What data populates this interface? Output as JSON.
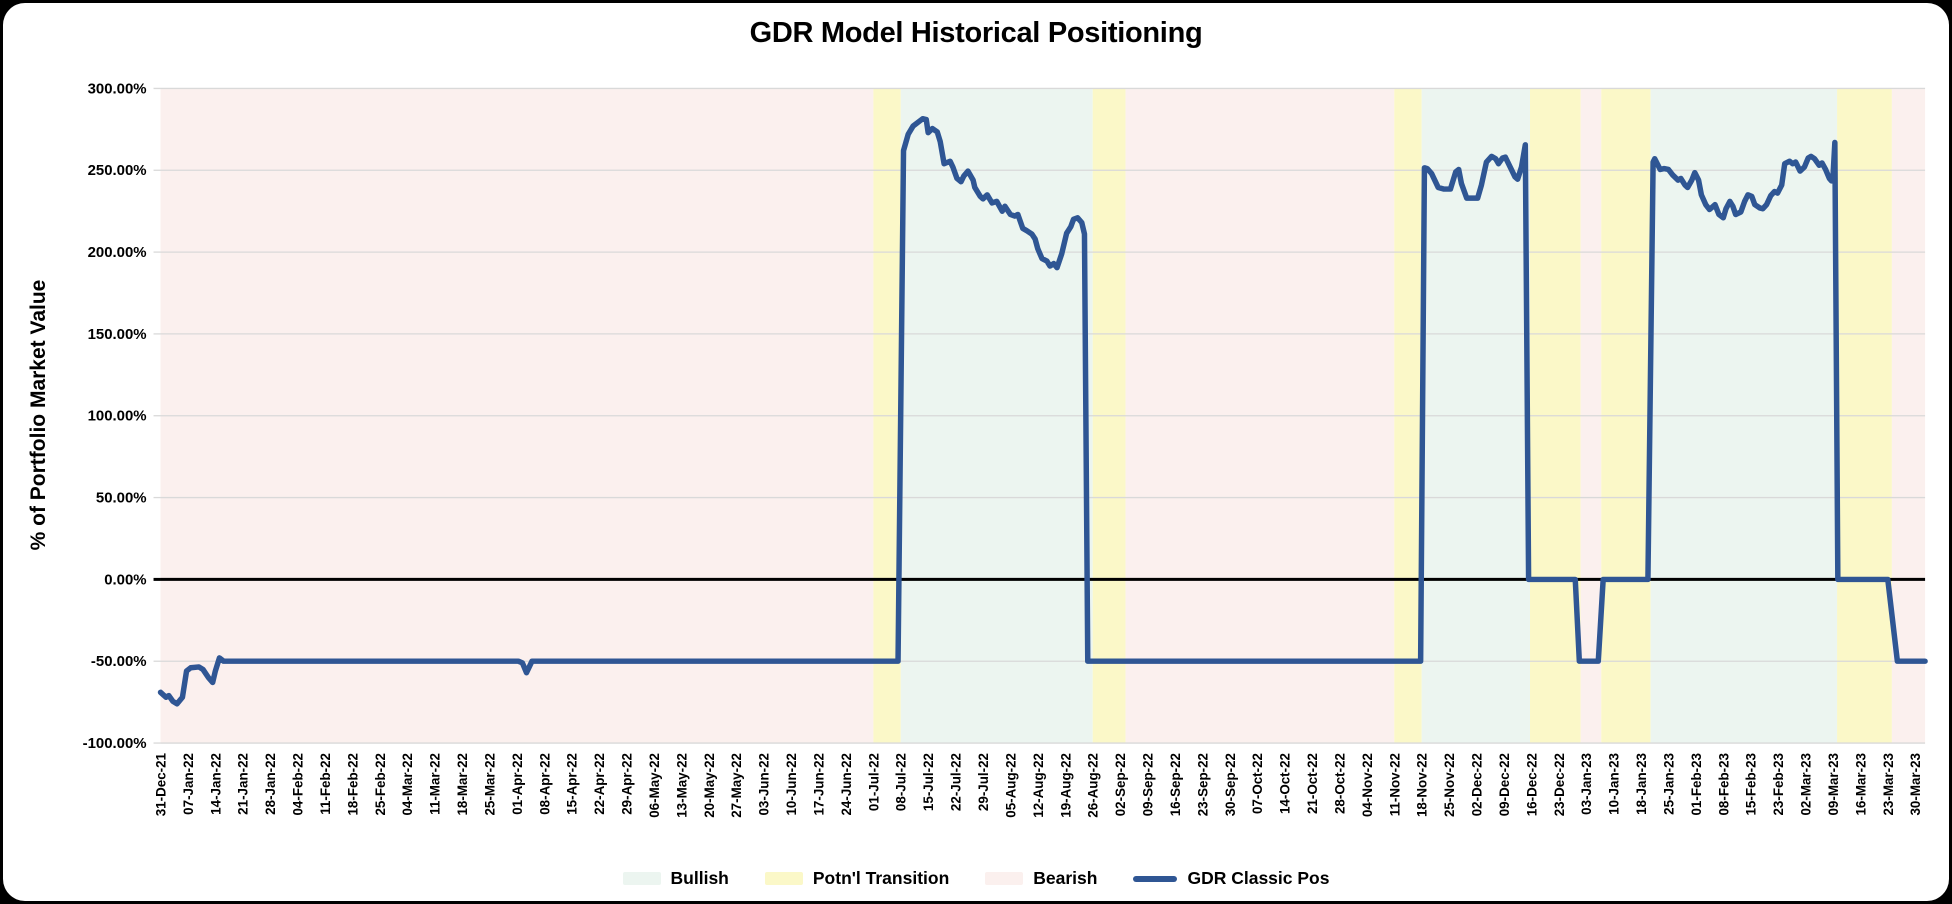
{
  "page": {
    "title": "GDR Model Historical Positioning"
  },
  "chart_data": {
    "type": "line",
    "title": "GDR Model Historical Positioning",
    "ylabel": "% of Portfolio Market Value",
    "xlabel": "",
    "grid": true,
    "legend_position": "bottom",
    "ylim": [
      -100,
      300
    ],
    "ytick_step": 50,
    "ytick_labels": [
      "300.00%",
      "250.00%",
      "200.00%",
      "150.00%",
      "100.00%",
      "50.00%",
      "0.00%",
      "-50.00%",
      "-100.00%"
    ],
    "x_range": [
      0,
      64.36
    ],
    "x_tick_labels": [
      "31-Dec-21",
      "07-Jan-22",
      "14-Jan-22",
      "21-Jan-22",
      "28-Jan-22",
      "04-Feb-22",
      "11-Feb-22",
      "18-Feb-22",
      "25-Feb-22",
      "04-Mar-22",
      "11-Mar-22",
      "18-Mar-22",
      "25-Mar-22",
      "01-Apr-22",
      "08-Apr-22",
      "15-Apr-22",
      "22-Apr-22",
      "29-Apr-22",
      "06-May-22",
      "13-May-22",
      "20-May-22",
      "27-May-22",
      "03-Jun-22",
      "10-Jun-22",
      "17-Jun-22",
      "24-Jun-22",
      "01-Jul-22",
      "08-Jul-22",
      "15-Jul-22",
      "22-Jul-22",
      "29-Jul-22",
      "05-Aug-22",
      "12-Aug-22",
      "19-Aug-22",
      "26-Aug-22",
      "02-Sep-22",
      "09-Sep-22",
      "16-Sep-22",
      "23-Sep-22",
      "30-Sep-22",
      "07-Oct-22",
      "14-Oct-22",
      "21-Oct-22",
      "28-Oct-22",
      "04-Nov-22",
      "11-Nov-22",
      "18-Nov-22",
      "25-Nov-22",
      "02-Dec-22",
      "09-Dec-22",
      "16-Dec-22",
      "23-Dec-22",
      "03-Jan-23",
      "10-Jan-23",
      "18-Jan-23",
      "25-Jan-23",
      "01-Feb-23",
      "08-Feb-23",
      "15-Feb-23",
      "23-Feb-23",
      "02-Mar-23",
      "09-Mar-23",
      "16-Mar-23",
      "23-Mar-23",
      "30-Mar-23"
    ],
    "band_colors": {
      "Bullish": "#ecf5f0",
      "Potn'l Transition": "#fbf8c8",
      "Bearish": "#fbf0ee"
    },
    "bands": [
      {
        "label": "Bearish",
        "start": 0,
        "end": 26.0
      },
      {
        "label": "Potn'l Transition",
        "start": 26.0,
        "end": 27.0
      },
      {
        "label": "Bullish",
        "start": 27.0,
        "end": 34.0
      },
      {
        "label": "Potn'l Transition",
        "start": 34.0,
        "end": 35.2
      },
      {
        "label": "Bearish",
        "start": 35.2,
        "end": 45.0
      },
      {
        "label": "Potn'l Transition",
        "start": 45.0,
        "end": 46.0
      },
      {
        "label": "Bullish",
        "start": 46.0,
        "end": 49.95
      },
      {
        "label": "Potn'l Transition",
        "start": 49.95,
        "end": 51.8
      },
      {
        "label": "Bearish",
        "start": 51.8,
        "end": 52.55
      },
      {
        "label": "Potn'l Transition",
        "start": 52.55,
        "end": 54.35
      },
      {
        "label": "Bullish",
        "start": 54.35,
        "end": 61.15
      },
      {
        "label": "Potn'l Transition",
        "start": 61.15,
        "end": 63.15
      },
      {
        "label": "Bearish",
        "start": 63.15,
        "end": 64.36
      }
    ],
    "series": [
      {
        "name": "GDR Classic Pos",
        "color": "#2f5694",
        "points": [
          [
            0,
            -69
          ],
          [
            0.2,
            -72
          ],
          [
            0.3,
            -71
          ],
          [
            0.45,
            -74.5
          ],
          [
            0.6,
            -76
          ],
          [
            0.8,
            -72
          ],
          [
            0.95,
            -56
          ],
          [
            1.1,
            -54
          ],
          [
            1.4,
            -53.5
          ],
          [
            1.55,
            -55
          ],
          [
            1.75,
            -60
          ],
          [
            1.9,
            -63
          ],
          [
            2.0,
            -56
          ],
          [
            2.15,
            -48
          ],
          [
            2.3,
            -50
          ],
          [
            13.05,
            -50
          ],
          [
            13.2,
            -51
          ],
          [
            13.35,
            -57
          ],
          [
            13.55,
            -50
          ],
          [
            26.9,
            -50
          ],
          [
            27.1,
            262
          ],
          [
            27.27,
            272
          ],
          [
            27.45,
            277
          ],
          [
            27.8,
            281.5
          ],
          [
            27.93,
            281
          ],
          [
            28.0,
            273
          ],
          [
            28.15,
            275.5
          ],
          [
            28.33,
            273.5
          ],
          [
            28.44,
            267.5
          ],
          [
            28.58,
            254
          ],
          [
            28.8,
            255.5
          ],
          [
            28.9,
            252
          ],
          [
            29.05,
            245
          ],
          [
            29.2,
            243
          ],
          [
            29.3,
            246.5
          ],
          [
            29.45,
            249.5
          ],
          [
            29.64,
            244
          ],
          [
            29.7,
            239.5
          ],
          [
            29.9,
            234
          ],
          [
            30.0,
            232.5
          ],
          [
            30.15,
            235
          ],
          [
            30.33,
            230
          ],
          [
            30.5,
            231
          ],
          [
            30.7,
            225
          ],
          [
            30.8,
            228
          ],
          [
            31.0,
            223
          ],
          [
            31.16,
            222
          ],
          [
            31.27,
            223
          ],
          [
            31.45,
            214.5
          ],
          [
            31.6,
            213
          ],
          [
            31.78,
            211
          ],
          [
            31.9,
            208
          ],
          [
            32.0,
            202
          ],
          [
            32.15,
            196
          ],
          [
            32.33,
            194.5
          ],
          [
            32.44,
            191.5
          ],
          [
            32.58,
            193
          ],
          [
            32.7,
            190.5
          ],
          [
            32.87,
            199
          ],
          [
            33.05,
            211.5
          ],
          [
            33.2,
            215.5
          ],
          [
            33.3,
            220
          ],
          [
            33.45,
            221
          ],
          [
            33.6,
            218
          ],
          [
            33.7,
            211
          ],
          [
            33.82,
            -50
          ],
          [
            45.96,
            -50
          ],
          [
            46.1,
            251.5
          ],
          [
            46.2,
            251
          ],
          [
            46.36,
            248
          ],
          [
            46.6,
            239.5
          ],
          [
            46.8,
            238.5
          ],
          [
            47.05,
            238.5
          ],
          [
            47.24,
            249
          ],
          [
            47.35,
            250.5
          ],
          [
            47.45,
            242
          ],
          [
            47.64,
            233
          ],
          [
            48.04,
            233
          ],
          [
            48.18,
            241
          ],
          [
            48.36,
            255
          ],
          [
            48.55,
            258.5
          ],
          [
            48.7,
            257
          ],
          [
            48.8,
            254
          ],
          [
            48.95,
            257.5
          ],
          [
            49.05,
            258
          ],
          [
            49.24,
            251.5
          ],
          [
            49.4,
            246
          ],
          [
            49.5,
            244.5
          ],
          [
            49.64,
            252
          ],
          [
            49.78,
            265.5
          ],
          [
            49.9,
            0
          ],
          [
            51.6,
            0
          ],
          [
            51.75,
            -50
          ],
          [
            52.44,
            -50
          ],
          [
            52.62,
            0
          ],
          [
            54.25,
            0
          ],
          [
            54.44,
            255
          ],
          [
            54.5,
            257
          ],
          [
            54.7,
            250.5
          ],
          [
            54.84,
            251
          ],
          [
            55.0,
            250.5
          ],
          [
            55.16,
            247
          ],
          [
            55.35,
            244
          ],
          [
            55.45,
            245
          ],
          [
            55.6,
            241
          ],
          [
            55.7,
            239.5
          ],
          [
            55.85,
            244
          ],
          [
            55.96,
            248.5
          ],
          [
            56.1,
            244
          ],
          [
            56.2,
            235
          ],
          [
            56.36,
            229
          ],
          [
            56.5,
            226
          ],
          [
            56.7,
            229
          ],
          [
            56.84,
            223
          ],
          [
            57.0,
            221
          ],
          [
            57.1,
            226.5
          ],
          [
            57.24,
            231
          ],
          [
            57.35,
            228
          ],
          [
            57.45,
            223
          ],
          [
            57.64,
            224.5
          ],
          [
            57.78,
            231
          ],
          [
            57.9,
            235
          ],
          [
            58.04,
            234
          ],
          [
            58.15,
            229
          ],
          [
            58.33,
            227
          ],
          [
            58.44,
            226.5
          ],
          [
            58.58,
            229
          ],
          [
            58.73,
            234.5
          ],
          [
            58.87,
            237
          ],
          [
            58.98,
            236
          ],
          [
            59.13,
            241
          ],
          [
            59.24,
            254
          ],
          [
            59.42,
            255.5
          ],
          [
            59.53,
            254
          ],
          [
            59.64,
            255
          ],
          [
            59.8,
            249.5
          ],
          [
            59.96,
            252
          ],
          [
            60.1,
            257.5
          ],
          [
            60.2,
            258.5
          ],
          [
            60.33,
            257
          ],
          [
            60.5,
            253
          ],
          [
            60.6,
            254.5
          ],
          [
            60.73,
            250.5
          ],
          [
            60.87,
            245
          ],
          [
            60.95,
            243.5
          ],
          [
            61.0,
            246
          ],
          [
            61.07,
            267
          ],
          [
            61.18,
            0
          ],
          [
            63.0,
            0
          ],
          [
            63.35,
            -50
          ],
          [
            64.36,
            -50
          ]
        ]
      }
    ],
    "legend": [
      {
        "label": "Bullish",
        "type": "swatch",
        "color": "#ecf5f0"
      },
      {
        "label": "Potn'l Transition",
        "type": "swatch",
        "color": "#fbf8c8"
      },
      {
        "label": "Bearish",
        "type": "swatch",
        "color": "#fbf0ee"
      },
      {
        "label": "GDR Classic Pos",
        "type": "line",
        "color": "#2f5694"
      }
    ],
    "style": {
      "gridline_color": "#d9d9d9",
      "zero_line_color": "#000000",
      "background": "#ffffff",
      "frame_background": "#000000"
    }
  }
}
